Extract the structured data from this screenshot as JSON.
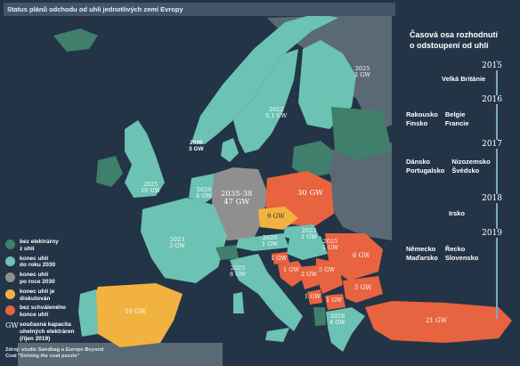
{
  "title": "Status plánů odchodu od uhlí jednotlivých zemí Evropy",
  "colors": {
    "background": "#233447",
    "no_coal": "#3f7f6b",
    "exit_by_2030": "#6cc2b3",
    "exit_after_2030": "#8f8f8f",
    "under_discussion": "#f2b23f",
    "approved_none": "#e8633f",
    "other_land": "#5a6a75"
  },
  "map_labels": {
    "norway": "2025\n2 GW",
    "finland": "2022\n0,1 GW",
    "sweden": "",
    "denmark": "2030\n3 GW",
    "uk": "2025\n10 GW",
    "netherlands": "2029\n4 GW",
    "germany": "2035-38\n47 GW",
    "poland": "30 GW",
    "czech": "9 GW",
    "france": "2023\n3 GW",
    "austria": "2020\n1 GW",
    "slovakia": "2023\n1 GW",
    "hungary": "2025\n1 GW",
    "italy": "2025\n8 GW",
    "romania": "6 GW",
    "bulgaria": "5 GW",
    "serbia": "5 GW",
    "bosnia": "2 GW",
    "slovenia": "1 GW",
    "croatia": "1 GW",
    "montenegro": "1 GW",
    "macedonia": "1 GW",
    "greece": "2028\n4 GW",
    "spain": "10 GW",
    "turkey": "21 GW",
    "portugal": ""
  },
  "legend": [
    {
      "label": "bez elektrárny\nz uhlí",
      "color": "#3f7f6b"
    },
    {
      "label": "konec uhlí\ndo roku 2030",
      "color": "#6cc2b3"
    },
    {
      "label": "konec uhlí\npo roce 2030",
      "color": "#8f8f8f"
    },
    {
      "label": "konec uhlí je\ndiskutován",
      "color": "#f2b23f"
    },
    {
      "label": "bez schváleného\nkonce uhlí",
      "color": "#e8633f"
    }
  ],
  "legend_gw": {
    "mark": "GW",
    "label": "současná kapacita\nuhelných elektráren\n(říjen 2019)"
  },
  "source": "Zdroj: studie Sandbag a Europe Beyond\nCoal \"Solving the coal puzzle\"",
  "timeline": {
    "heading": "Časová osa rozhodnutí\no odstoupení od uhlí",
    "years": [
      {
        "year": "2015",
        "countries": [
          "Velká Británie"
        ]
      },
      {
        "year": "2016",
        "countries": [
          "Rakousko",
          "Belgie",
          "Finsko",
          "Francie"
        ]
      },
      {
        "year": "2017",
        "countries": [
          "Dánsko",
          "Nizozemsko",
          "Portugalsko",
          "Švédsko"
        ]
      },
      {
        "year": "2018",
        "countries": [
          "Irsko"
        ]
      },
      {
        "year": "2019",
        "countries": [
          "Německo",
          "Řecko",
          "Maďarsko",
          "Slovensko"
        ]
      }
    ]
  }
}
